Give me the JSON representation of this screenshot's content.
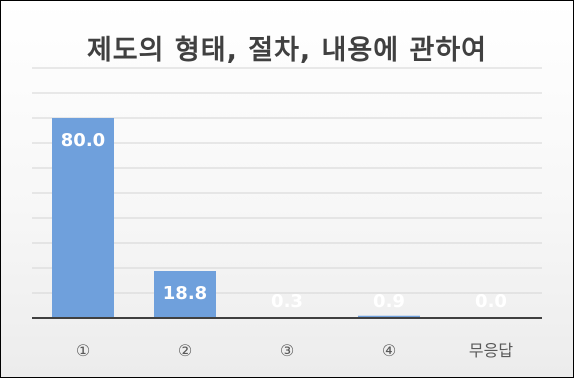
{
  "chart_data": {
    "type": "bar",
    "title": "제도의 형태, 절차, 내용에 관하여",
    "categories": [
      "①",
      "②",
      "③",
      "④",
      "무응답"
    ],
    "values": [
      80.0,
      18.8,
      0.3,
      0.9,
      0.0
    ],
    "data_labels": [
      "80.0",
      "18.8",
      "0.3",
      "0.9",
      "0.0"
    ],
    "xlabel": "",
    "ylabel": "",
    "ylim": [
      0,
      100
    ],
    "grid": true,
    "bar_color": "#6fa0dc",
    "label_color": "#ffffff"
  }
}
